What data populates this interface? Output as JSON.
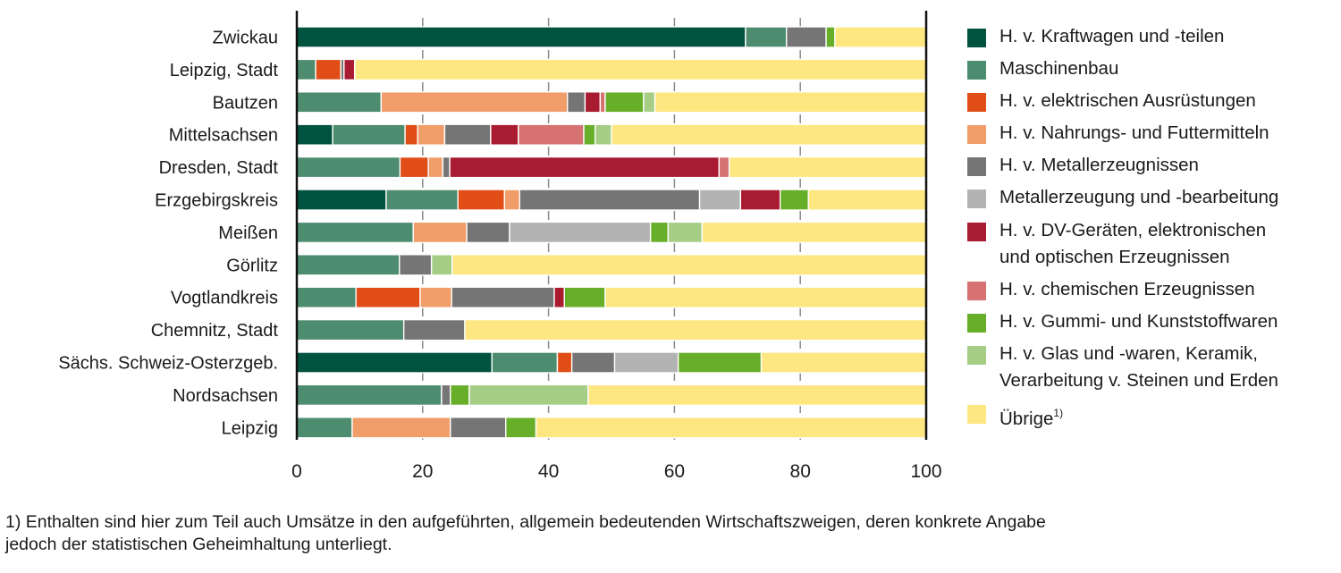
{
  "chart_data": {
    "type": "bar",
    "orientation": "horizontal",
    "stacked": true,
    "title": "",
    "xlabel": "",
    "ylabel": "",
    "xlim": [
      0,
      100
    ],
    "xticks": [
      0,
      20,
      40,
      60,
      80,
      100
    ],
    "grid": "vertical dashed at ticks",
    "legend_position": "right",
    "categories": [
      "Zwickau",
      "Leipzig, Stadt",
      "Bautzen",
      "Mittelsachsen",
      "Dresden, Stadt",
      "Erzgebirgskreis",
      "Meißen",
      "Görlitz",
      "Vogtlandkreis",
      "Chemnitz, Stadt",
      "Sächs. Schweiz-Osterzgeb.",
      "Nordsachsen",
      "Leipzig"
    ],
    "series": [
      {
        "name": "H. v. Kraftwagen und -teilen",
        "color": "#00533f",
        "values": [
          71.3,
          0,
          0,
          5.7,
          0,
          14.2,
          0,
          0,
          0,
          0,
          31.0,
          0,
          0
        ]
      },
      {
        "name": "Maschinenbau",
        "color": "#4e8c70",
        "values": [
          6.5,
          3.0,
          13.4,
          11.5,
          16.4,
          11.4,
          18.5,
          16.3,
          9.4,
          17.0,
          10.4,
          23.0,
          8.8
        ]
      },
      {
        "name": "H. v. elektrischen Ausrüstungen",
        "color": "#e04d16",
        "values": [
          0,
          4.0,
          0,
          2.0,
          4.5,
          7.4,
          0,
          0,
          10.2,
          0,
          2.3,
          0,
          0
        ]
      },
      {
        "name": "H. v. Nahrungs- und Futtermitteln",
        "color": "#f19d6a",
        "values": [
          0,
          0,
          29.6,
          4.3,
          2.3,
          2.4,
          8.5,
          0,
          5.0,
          0,
          0,
          0,
          15.6
        ]
      },
      {
        "name": "H. v. Metallerzeugnissen",
        "color": "#757575",
        "values": [
          6.3,
          0.5,
          2.8,
          7.3,
          1.1,
          28.6,
          6.8,
          5.1,
          16.3,
          9.7,
          6.8,
          1.4,
          8.8
        ]
      },
      {
        "name": "Metallerzeugung und -bearbeitung",
        "color": "#b3b3b3",
        "values": [
          0,
          0,
          0,
          0,
          0,
          6.5,
          22.4,
          0,
          0,
          0,
          10.1,
          0,
          0
        ]
      },
      {
        "name": "H. v. DV-Geräten, elektronischen und optischen Erzeugnissen",
        "color": "#a81b30",
        "values": [
          0,
          1.7,
          2.4,
          4.4,
          42.8,
          6.3,
          0,
          0,
          1.6,
          0,
          0,
          0,
          0
        ]
      },
      {
        "name": "H. v. chemischen Erzeugnissen",
        "color": "#d67272",
        "values": [
          0,
          0,
          0.8,
          10.4,
          1.6,
          0,
          0,
          0,
          0,
          0,
          0,
          0,
          0
        ]
      },
      {
        "name": "H. v. Gummi- und Kunststoffwaren",
        "color": "#67ae29",
        "values": [
          1.4,
          0,
          6.1,
          1.8,
          0,
          4.5,
          2.8,
          0,
          6.5,
          0,
          13.2,
          3.0,
          4.8
        ]
      },
      {
        "name": "H. v. Glas und -waren, Keramik, Verarbeitung v. Steinen und Erden",
        "color": "#a6cd85",
        "values": [
          0,
          0,
          1.8,
          2.6,
          0,
          0,
          5.4,
          3.3,
          0,
          0,
          0,
          18.9,
          0
        ]
      },
      {
        "name": "Übrige",
        "color": "#fee680",
        "values": [
          14.5,
          90.8,
          43.1,
          50.0,
          31.3,
          18.7,
          35.6,
          75.3,
          51.0,
          73.3,
          26.2,
          53.7,
          62.0
        ]
      }
    ]
  },
  "legend": {
    "items": [
      {
        "lines": [
          "H. v. Kraftwagen und -teilen"
        ],
        "sup": ""
      },
      {
        "lines": [
          "Maschinenbau"
        ],
        "sup": ""
      },
      {
        "lines": [
          "H. v. elektrischen Ausrüstungen"
        ],
        "sup": ""
      },
      {
        "lines": [
          "H. v. Nahrungs- und Futtermitteln"
        ],
        "sup": ""
      },
      {
        "lines": [
          "H. v. Metallerzeugnissen"
        ],
        "sup": ""
      },
      {
        "lines": [
          "Metallerzeugung und -bearbeitung"
        ],
        "sup": ""
      },
      {
        "lines": [
          "H. v. DV-Geräten, elektronischen",
          "und optischen Erzeugnissen"
        ],
        "sup": ""
      },
      {
        "lines": [
          "H. v. chemischen Erzeugnissen"
        ],
        "sup": ""
      },
      {
        "lines": [
          "H. v. Gummi- und Kunststoffwaren"
        ],
        "sup": ""
      },
      {
        "lines": [
          "H. v. Glas und -waren, Keramik,",
          "Verarbeitung v. Steinen und Erden"
        ],
        "sup": ""
      },
      {
        "lines": [
          "Übrige"
        ],
        "sup": "1)"
      }
    ]
  },
  "footnote": {
    "line1": "1) Enthalten sind hier zum Teil auch Umsätze in den aufgeführten, allgemein bedeutenden Wirtschaftszweigen, deren konkrete Angabe",
    "line2": "jedoch der statistischen Geheimhaltung unterliegt."
  }
}
